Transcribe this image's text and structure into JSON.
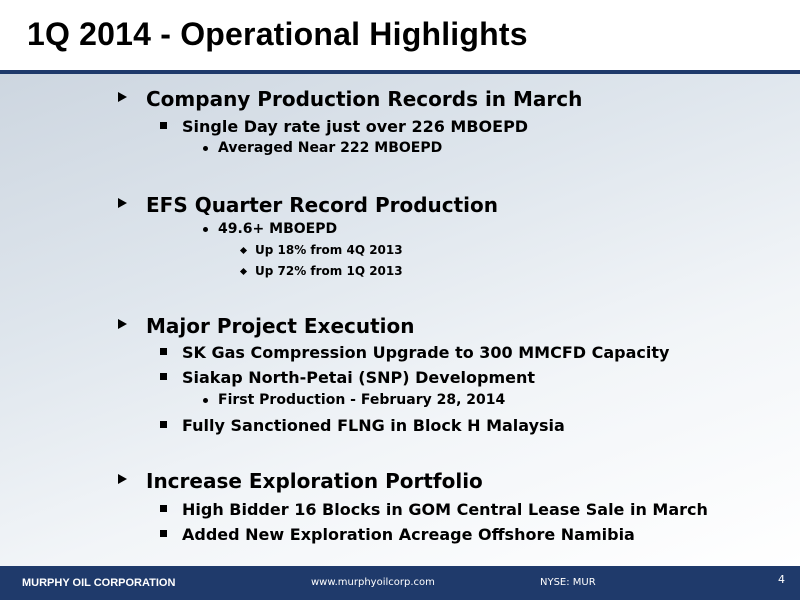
{
  "title": "1Q 2014 - Operational Highlights",
  "sections": [
    {
      "heading": "Company Production Records in March",
      "items": [
        {
          "text": "Single Day rate just over 226 MBOEPD",
          "subitems": [
            "Averaged Near 222 MBOEPD"
          ]
        }
      ]
    },
    {
      "heading": "EFS Quarter Record Production",
      "items": [
        {
          "text": "49.6+ MBOEPD",
          "subitems": [
            "Up 18% from 4Q 2013",
            "Up 72% from 1Q 2013"
          ]
        }
      ]
    },
    {
      "heading": "Major Project Execution",
      "items": [
        {
          "text": "SK Gas Compression Upgrade to 300 MMCFD Capacity"
        },
        {
          "text": "Siakap North-Petai (SNP) Development",
          "subitems": [
            "First Production - February 28, 2014"
          ]
        },
        {
          "text": "Fully Sanctioned FLNG in Block H Malaysia"
        }
      ]
    },
    {
      "heading": "Increase Exploration Portfolio",
      "items": [
        {
          "text": "High Bidder 16 Blocks in GOM Central Lease Sale in March"
        },
        {
          "text": "Added New Exploration Acreage Offshore Namibia"
        }
      ]
    }
  ],
  "footer": {
    "company": "MURPHY OIL CORPORATION",
    "url": "www.murphyoilcorp.com",
    "ticker": "NYSE: MUR",
    "page_number": "4"
  },
  "colors": {
    "accent": "#1f3a6b",
    "text": "#000000"
  },
  "icons": {
    "level1": "triangle-bullet-icon",
    "level2": "square-bullet-icon",
    "level3": "dot-bullet-icon",
    "level4": "diamond-bullet-icon"
  }
}
